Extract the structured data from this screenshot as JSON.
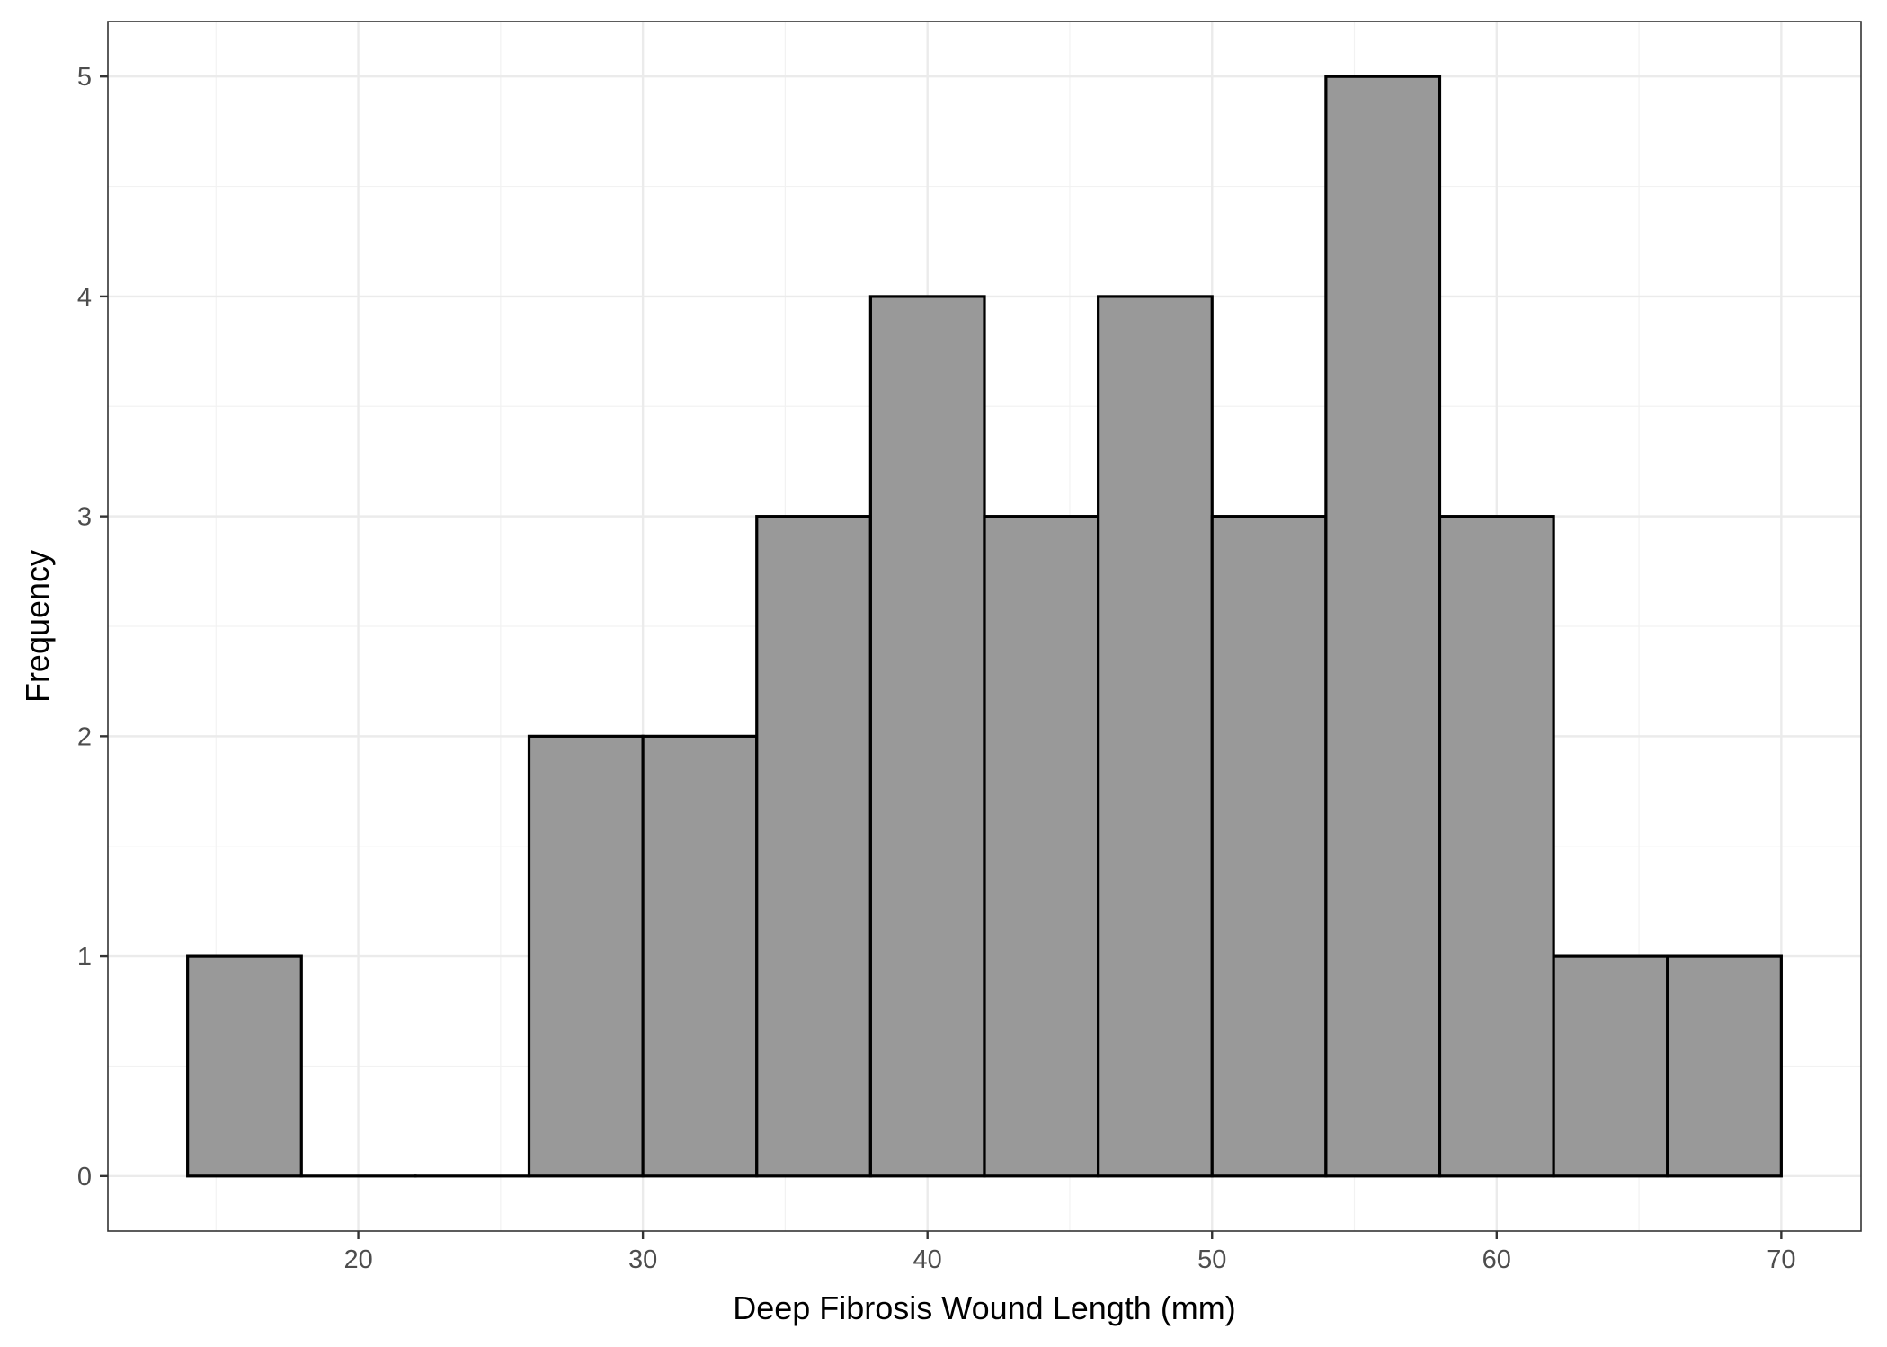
{
  "chart_data": {
    "type": "bar",
    "title": "",
    "xlabel": "Deep Fibrosis Wound Length (mm)",
    "ylabel": "Frequency",
    "xlim": [
      11.2,
      72.8
    ],
    "ylim": [
      -0.25,
      5.25
    ],
    "x_ticks": [
      20,
      30,
      40,
      50,
      60,
      70
    ],
    "x_tick_labels": [
      "20",
      "30",
      "40",
      "50",
      "60",
      "70"
    ],
    "y_ticks": [
      0,
      1,
      2,
      3,
      4,
      5
    ],
    "y_tick_labels": [
      "0",
      "1",
      "2",
      "3",
      "4",
      "5"
    ],
    "bin_width": 4,
    "bins": [
      {
        "x0": 14,
        "x1": 18,
        "count": 1
      },
      {
        "x0": 18,
        "x1": 22,
        "count": 0
      },
      {
        "x0": 22,
        "x1": 26,
        "count": 0
      },
      {
        "x0": 26,
        "x1": 30,
        "count": 2
      },
      {
        "x0": 30,
        "x1": 34,
        "count": 2
      },
      {
        "x0": 34,
        "x1": 38,
        "count": 3
      },
      {
        "x0": 38,
        "x1": 42,
        "count": 4
      },
      {
        "x0": 42,
        "x1": 46,
        "count": 3
      },
      {
        "x0": 46,
        "x1": 50,
        "count": 4
      },
      {
        "x0": 50,
        "x1": 54,
        "count": 3
      },
      {
        "x0": 54,
        "x1": 58,
        "count": 5
      },
      {
        "x0": 58,
        "x1": 62,
        "count": 3
      },
      {
        "x0": 62,
        "x1": 66,
        "count": 1
      },
      {
        "x0": 66,
        "x1": 70,
        "count": 1
      }
    ],
    "grid": true,
    "legend": "none",
    "colors": {
      "bar_fill": "#999999",
      "bar_outline": "#000000"
    }
  }
}
